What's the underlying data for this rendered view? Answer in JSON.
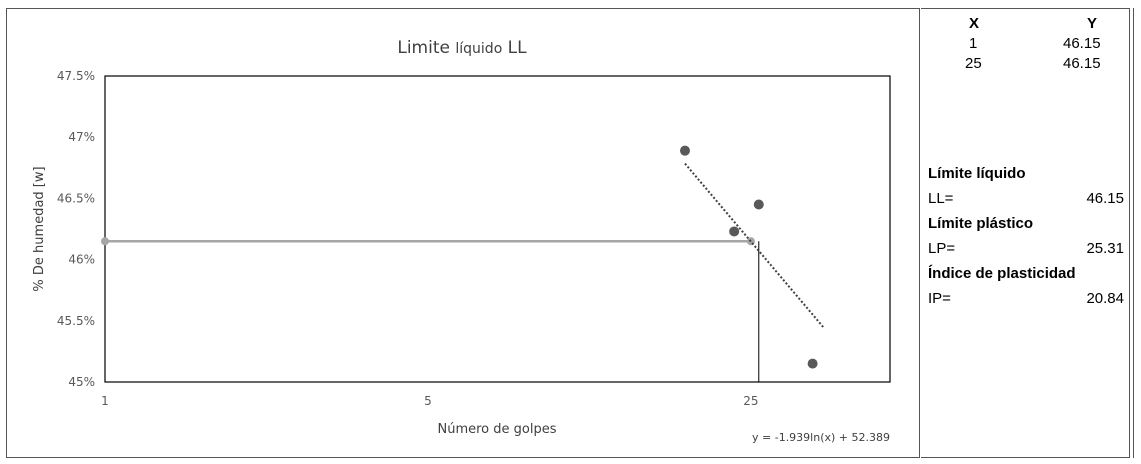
{
  "chart_data": {
    "type": "scatter",
    "title_main": "Limite ",
    "title_small": "líquido",
    "title_end": " LL",
    "xlabel": "Número de golpes",
    "ylabel": "% De humedad [w]",
    "x_scale": "log",
    "xlim": [
      1,
      50
    ],
    "ylim": [
      45,
      47.5
    ],
    "x_ticks": [
      1,
      5,
      25
    ],
    "x_tick_labels": [
      "1",
      "5",
      "25"
    ],
    "y_ticks": [
      45,
      45.5,
      46,
      46.5,
      47,
      47.5
    ],
    "y_tick_labels": [
      "45%",
      "45.5%",
      "46%",
      "46.5%",
      "47%",
      "47.5%"
    ],
    "series": [
      {
        "points": [
          {
            "x": 18,
            "y": 46.89
          },
          {
            "x": 23,
            "y": 46.23
          },
          {
            "x": 26,
            "y": 46.45
          },
          {
            "x": 34,
            "y": 45.15
          }
        ],
        "color": "#595959"
      }
    ],
    "reference_line": {
      "points": [
        {
          "x": 1,
          "y": 46.15
        },
        {
          "x": 25,
          "y": 46.15
        }
      ],
      "color": "#a6a6a6"
    },
    "vertical_line": {
      "x": 26,
      "y_from": 45,
      "y_to": 46.15,
      "color": "#000000"
    },
    "trendline": {
      "a": -1.939,
      "b": 52.389,
      "x_from": 18,
      "x_to": 36,
      "equation": "y = -1.939ln(x) + 52.389"
    }
  },
  "xy_table": {
    "headers": [
      "X",
      "Y"
    ],
    "rows": [
      [
        "1",
        "46.15"
      ],
      [
        "25",
        "46.15"
      ]
    ]
  },
  "properties": {
    "ll_title": "Límite líquido",
    "ll_key": "LL=",
    "ll_value": "46.15",
    "lp_title": "Límite plástico",
    "lp_key": "LP=",
    "lp_value": "25.31",
    "ip_title": "Índice de plasticidad",
    "ip_key": "IP=",
    "ip_value": "20.84"
  }
}
